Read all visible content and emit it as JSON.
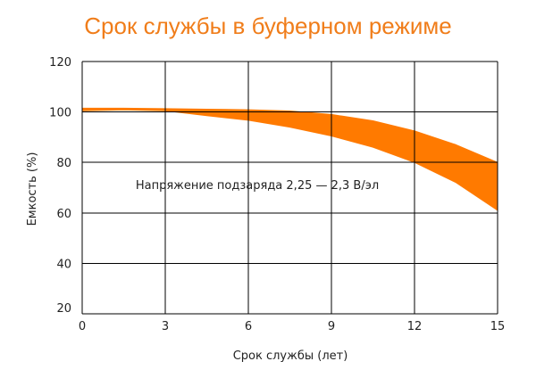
{
  "chart_data": {
    "type": "area",
    "title": "Срок службы в буферном режиме",
    "xlabel": "Срок службы (лет)",
    "ylabel": "Емкость (%)",
    "xlim": [
      0,
      15
    ],
    "ylim": [
      20,
      120
    ],
    "x_ticks": [
      0,
      3,
      6,
      9,
      12,
      15
    ],
    "y_ticks": [
      20,
      40,
      60,
      80,
      100,
      120
    ],
    "grid": true,
    "annotation": "Напряжение подзаряда 2,25 — 2,3 В/эл",
    "series": [
      {
        "x": [
          0,
          1.5,
          3,
          4.5,
          6,
          7.5,
          9,
          10.5,
          12,
          13.5,
          15
        ],
        "upper": [
          101.5,
          101.5,
          101.3,
          101.1,
          100.9,
          100.4,
          99.0,
          96.5,
          92.5,
          87.0,
          80.0
        ],
        "lower": [
          100.5,
          100.8,
          100.5,
          98.5,
          96.7,
          94.0,
          90.5,
          86.0,
          80.0,
          72.0,
          61.0
        ]
      }
    ],
    "colors": {
      "band": "#ff7a00",
      "title": "#f07d1a",
      "grid": "#000000"
    }
  }
}
